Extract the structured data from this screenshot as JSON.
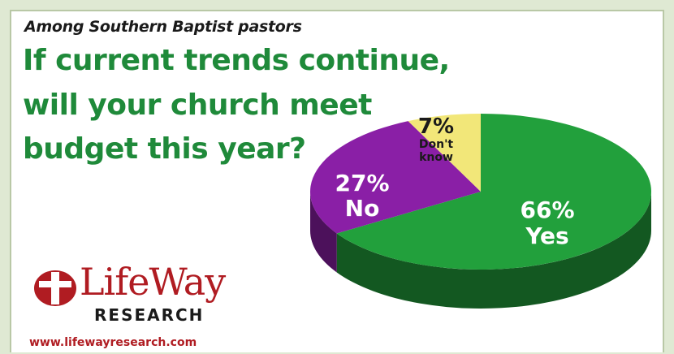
{
  "header": {
    "subtitle": "Among Southern Baptist pastors",
    "title_lines": [
      "If current trends continue,",
      "will your church meet",
      "budget this year?"
    ]
  },
  "chart_data": {
    "type": "pie",
    "title": "If current trends continue, will your church meet budget this year?",
    "subtitle": "Among Southern Baptist pastors",
    "slices": [
      {
        "name": "Yes",
        "value": 66,
        "label_pct": "66%",
        "color": "#22a03c"
      },
      {
        "name": "No",
        "value": 27,
        "label_pct": "27%",
        "color": "#8a1fa6"
      },
      {
        "name": "Don't know",
        "value": 7,
        "label_pct": "7%",
        "label_lines": [
          "Don't",
          "know"
        ],
        "color": "#f2e779"
      }
    ]
  },
  "logo": {
    "word": "LifeWay",
    "sub": "RESEARCH"
  },
  "footer": {
    "url": "www.lifewayresearch.com"
  },
  "colors": {
    "title": "#1f8a3a",
    "brand": "#b01c22",
    "background": "#dfe9d3"
  }
}
